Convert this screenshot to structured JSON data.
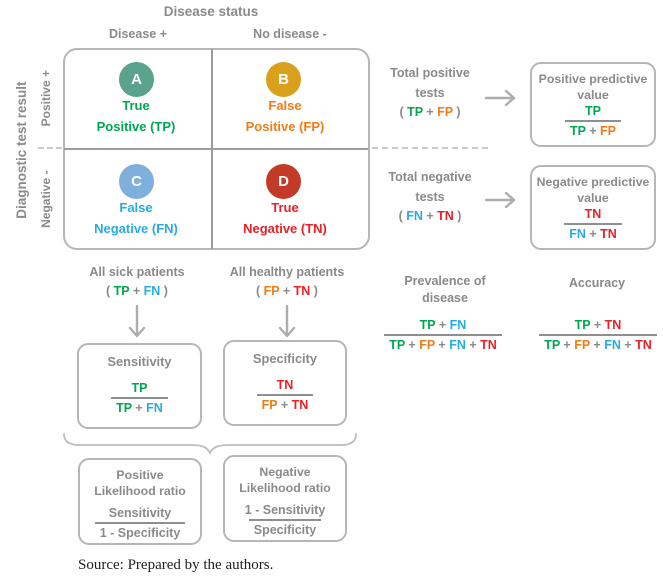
{
  "colors": {
    "gray": "#8a8a8a",
    "tp": "#00a651",
    "fp": "#ee7d18",
    "fn": "#29abe2",
    "tn": "#ec2027",
    "circle_a": "#5aa28c",
    "circle_b": "#d9a01d",
    "circle_c": "#7fafdd",
    "circle_d": "#c33a28"
  },
  "axes": {
    "top_title": "Disease status",
    "col_positive": "Disease +",
    "col_negative": "No disease -",
    "left_title": "Diagnostic test result",
    "row_positive": "Positive +",
    "row_negative": "Negative -"
  },
  "matrix": {
    "a": {
      "letter": "A",
      "line1": "True",
      "line2": "Positive (TP)"
    },
    "b": {
      "letter": "B",
      "line1": "False",
      "line2": "Positive (FP)"
    },
    "c": {
      "letter": "C",
      "line1": "False",
      "line2": "Negative (FN)"
    },
    "d": {
      "letter": "D",
      "line1": "True",
      "line2": "Negative (TN)"
    }
  },
  "total_positive": {
    "line1": "Total positive",
    "line2": "tests",
    "terms": [
      {
        "t": "( ",
        "c": "gray"
      },
      {
        "t": "TP",
        "c": "tp"
      },
      {
        "t": " + ",
        "c": "gray"
      },
      {
        "t": "FP",
        "c": "fp"
      },
      {
        "t": " )",
        "c": "gray"
      }
    ]
  },
  "ppv": {
    "title1": "Positive predictive",
    "title2": "value",
    "num": [
      {
        "t": "TP",
        "c": "tp"
      }
    ],
    "den": [
      {
        "t": "TP",
        "c": "tp"
      },
      {
        "t": " + ",
        "c": "gray"
      },
      {
        "t": "FP",
        "c": "fp"
      }
    ]
  },
  "total_negative": {
    "line1": "Total negative",
    "line2": "tests",
    "terms": [
      {
        "t": "( ",
        "c": "gray"
      },
      {
        "t": "FN",
        "c": "fn"
      },
      {
        "t": " + ",
        "c": "gray"
      },
      {
        "t": "TN",
        "c": "tn"
      },
      {
        "t": " )",
        "c": "gray"
      }
    ]
  },
  "npv": {
    "title1": "Negative predictive",
    "title2": "value",
    "num": [
      {
        "t": "TN",
        "c": "tn"
      }
    ],
    "den": [
      {
        "t": "FN",
        "c": "fn"
      },
      {
        "t": " + ",
        "c": "gray"
      },
      {
        "t": "TN",
        "c": "tn"
      }
    ]
  },
  "all_sick": {
    "label": "All sick patients",
    "terms": [
      {
        "t": "( ",
        "c": "gray"
      },
      {
        "t": "TP",
        "c": "tp"
      },
      {
        "t": " + ",
        "c": "gray"
      },
      {
        "t": "FN",
        "c": "fn"
      },
      {
        "t": " )",
        "c": "gray"
      }
    ]
  },
  "all_healthy": {
    "label": "All healthy patients",
    "terms": [
      {
        "t": "( ",
        "c": "gray"
      },
      {
        "t": "FP",
        "c": "fp"
      },
      {
        "t": " + ",
        "c": "gray"
      },
      {
        "t": "TN",
        "c": "tn"
      },
      {
        "t": " )",
        "c": "gray"
      }
    ]
  },
  "sensitivity": {
    "title": "Sensitivity",
    "num": [
      {
        "t": "TP",
        "c": "tp"
      }
    ],
    "den": [
      {
        "t": "TP",
        "c": "tp"
      },
      {
        "t": " + ",
        "c": "gray"
      },
      {
        "t": "FN",
        "c": "fn"
      }
    ]
  },
  "specificity": {
    "title": "Specificity",
    "num": [
      {
        "t": "TN",
        "c": "tn"
      }
    ],
    "den": [
      {
        "t": "FP",
        "c": "fp"
      },
      {
        "t": " + ",
        "c": "gray"
      },
      {
        "t": "TN",
        "c": "tn"
      }
    ]
  },
  "plr": {
    "title1": "Positive",
    "title2": "Likelihood ratio",
    "num": [
      {
        "t": "Sensitivity",
        "c": "gray"
      }
    ],
    "den": [
      {
        "t": "1 - Specificity",
        "c": "gray"
      }
    ]
  },
  "nlr": {
    "title1": "Negative",
    "title2": "Likelihood ratio",
    "num": [
      {
        "t": "1 - Sensitivity",
        "c": "gray"
      }
    ],
    "den": [
      {
        "t": "Specificity",
        "c": "gray"
      }
    ]
  },
  "prevalence": {
    "title1": "Prevalence of",
    "title2": "disease",
    "num": [
      {
        "t": "TP",
        "c": "tp"
      },
      {
        "t": " + ",
        "c": "gray"
      },
      {
        "t": "FN",
        "c": "fn"
      }
    ],
    "den": [
      {
        "t": "TP",
        "c": "tp"
      },
      {
        "t": " + ",
        "c": "gray"
      },
      {
        "t": "FP",
        "c": "fp"
      },
      {
        "t": " + ",
        "c": "gray"
      },
      {
        "t": "FN",
        "c": "fn"
      },
      {
        "t": " + ",
        "c": "gray"
      },
      {
        "t": "TN",
        "c": "tn"
      }
    ]
  },
  "accuracy": {
    "title": "Accuracy",
    "num": [
      {
        "t": "TP",
        "c": "tp"
      },
      {
        "t": " + ",
        "c": "gray"
      },
      {
        "t": "TN",
        "c": "tn"
      }
    ],
    "den": [
      {
        "t": "TP",
        "c": "tp"
      },
      {
        "t": " + ",
        "c": "gray"
      },
      {
        "t": "FP",
        "c": "fp"
      },
      {
        "t": " + ",
        "c": "gray"
      },
      {
        "t": "FN",
        "c": "fn"
      },
      {
        "t": " + ",
        "c": "gray"
      },
      {
        "t": "TN",
        "c": "tn"
      }
    ]
  },
  "source": "Source: Prepared by the authors."
}
